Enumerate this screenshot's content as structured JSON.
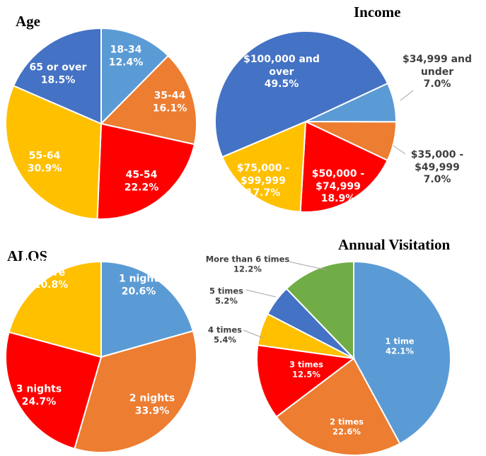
{
  "chart_data": [
    {
      "type": "pie",
      "title": "Age",
      "categories": [
        "18-34",
        "35-44",
        "45-54",
        "55-64",
        "65 or over"
      ],
      "values": [
        12.4,
        16.1,
        22.2,
        30.9,
        18.5
      ],
      "value_labels": [
        "12.4%",
        "16.1%",
        "22.2%",
        "30.9%",
        "18.5%"
      ],
      "colors": [
        "#5b9bd5",
        "#ed7d31",
        "#ff0000",
        "#ffc000",
        "#4472c4"
      ]
    },
    {
      "type": "pie",
      "title": "Income",
      "categories": [
        "$34,999 and under",
        "$35,000 - $49,999",
        "$50,000 - $74,999",
        "$75,000 - $99,999",
        "$100,000 and over"
      ],
      "values": [
        7.0,
        7.0,
        18.9,
        17.7,
        49.5
      ],
      "value_labels": [
        "7.0%",
        "7.0%",
        "18.9%",
        "17.7%",
        "49.5%"
      ],
      "colors": [
        "#5b9bd5",
        "#ed7d31",
        "#ff0000",
        "#ffc000",
        "#4472c4"
      ]
    },
    {
      "type": "pie",
      "title": "ALOS",
      "categories": [
        "1 night",
        "2 nights",
        "3 nights",
        "4 nights or more"
      ],
      "values": [
        20.6,
        33.9,
        24.7,
        20.8
      ],
      "value_labels": [
        "20.6%",
        "33.9%",
        "24.7%",
        "20.8%"
      ],
      "colors": [
        "#5b9bd5",
        "#ed7d31",
        "#ff0000",
        "#ffc000"
      ]
    },
    {
      "type": "pie",
      "title": "Annual Visitation",
      "categories": [
        "1 time",
        "2 times",
        "3 times",
        "4 times",
        "5 times",
        "More than 6 times"
      ],
      "values": [
        42.1,
        22.6,
        12.5,
        5.4,
        5.2,
        12.2
      ],
      "value_labels": [
        "42.1%",
        "22.6%",
        "12.5%",
        "5.4%",
        "5.2%",
        "12.2%"
      ],
      "colors": [
        "#5b9bd5",
        "#ed7d31",
        "#ff0000",
        "#ffc000",
        "#4472c4",
        "#70ad47"
      ]
    }
  ]
}
